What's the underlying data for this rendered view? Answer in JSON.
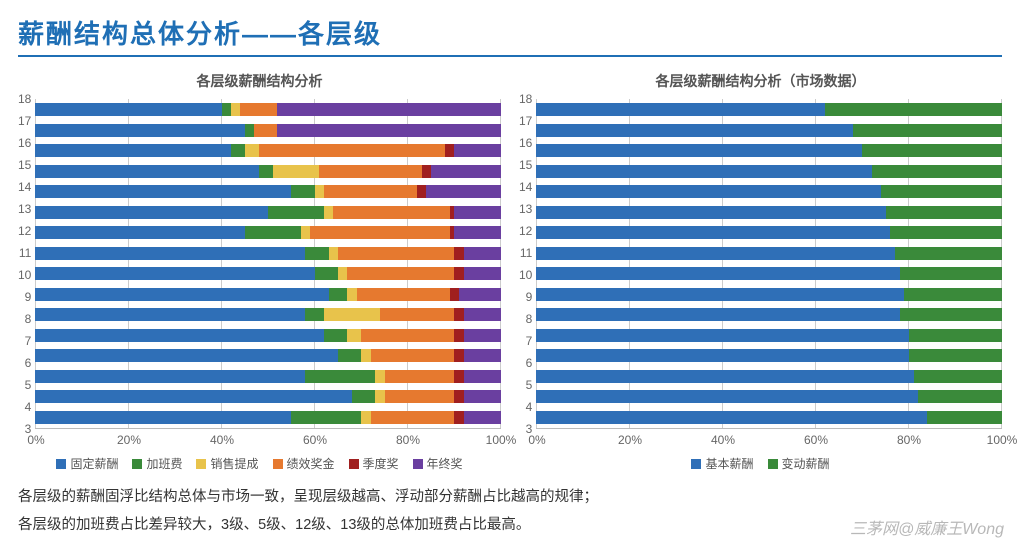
{
  "title": {
    "text": "薪酬结构总体分析——各层级",
    "color": "#1f6fb5"
  },
  "notes": [
    "各层级的薪酬固浮比结构总体与市场一致，呈现层级越高、浮动部分薪酬占比越高的规律；",
    "各层级的加班费占比差异较大，3级、5级、12级、13级的总体加班费占比最高。"
  ],
  "watermark": "三茅网@威廉王Wong",
  "axis": {
    "ticks": [
      "0%",
      "20%",
      "40%",
      "60%",
      "80%",
      "100%"
    ],
    "levels": [
      "18",
      "17",
      "16",
      "15",
      "14",
      "13",
      "12",
      "11",
      "10",
      "9",
      "8",
      "7",
      "6",
      "5",
      "4",
      "3"
    ]
  },
  "left": {
    "title": "各层级薪酬结构分析",
    "series": [
      {
        "name": "固定薪酬",
        "color": "#2f6fb7"
      },
      {
        "name": "加班费",
        "color": "#3a8a3a"
      },
      {
        "name": "销售提成",
        "color": "#e8c34b"
      },
      {
        "name": "绩效奖金",
        "color": "#e6792f"
      },
      {
        "name": "季度奖",
        "color": "#a01f1f"
      },
      {
        "name": "年终奖",
        "color": "#6a3fa0"
      }
    ],
    "data": {
      "18": [
        40,
        2,
        2,
        8,
        0,
        48
      ],
      "17": [
        45,
        2,
        0,
        5,
        0,
        48
      ],
      "16": [
        42,
        3,
        3,
        40,
        2,
        10
      ],
      "15": [
        48,
        3,
        10,
        22,
        2,
        15
      ],
      "14": [
        55,
        5,
        2,
        20,
        2,
        16
      ],
      "13": [
        50,
        12,
        2,
        25,
        1,
        10
      ],
      "12": [
        45,
        12,
        2,
        30,
        1,
        10
      ],
      "11": [
        58,
        5,
        2,
        25,
        2,
        8
      ],
      "10": [
        60,
        5,
        2,
        23,
        2,
        8
      ],
      "9": [
        63,
        4,
        2,
        20,
        2,
        9
      ],
      "8": [
        58,
        4,
        12,
        16,
        2,
        8
      ],
      "7": [
        62,
        5,
        3,
        20,
        2,
        8
      ],
      "6": [
        65,
        5,
        2,
        18,
        2,
        8
      ],
      "5": [
        58,
        15,
        2,
        15,
        2,
        8
      ],
      "4": [
        68,
        5,
        2,
        15,
        2,
        8
      ],
      "3": [
        55,
        15,
        2,
        18,
        2,
        8
      ]
    }
  },
  "right": {
    "title": "各层级薪酬结构分析（市场数据）",
    "series": [
      {
        "name": "基本薪酬",
        "color": "#2f6fb7"
      },
      {
        "name": "变动薪酬",
        "color": "#3a8a3a"
      }
    ],
    "data": {
      "18": [
        62,
        38
      ],
      "17": [
        68,
        32
      ],
      "16": [
        70,
        30
      ],
      "15": [
        72,
        28
      ],
      "14": [
        74,
        26
      ],
      "13": [
        75,
        25
      ],
      "12": [
        76,
        24
      ],
      "11": [
        77,
        23
      ],
      "10": [
        78,
        22
      ],
      "9": [
        79,
        21
      ],
      "8": [
        78,
        22
      ],
      "7": [
        80,
        20
      ],
      "6": [
        80,
        20
      ],
      "5": [
        81,
        19
      ],
      "4": [
        82,
        18
      ],
      "3": [
        84,
        16
      ]
    }
  }
}
